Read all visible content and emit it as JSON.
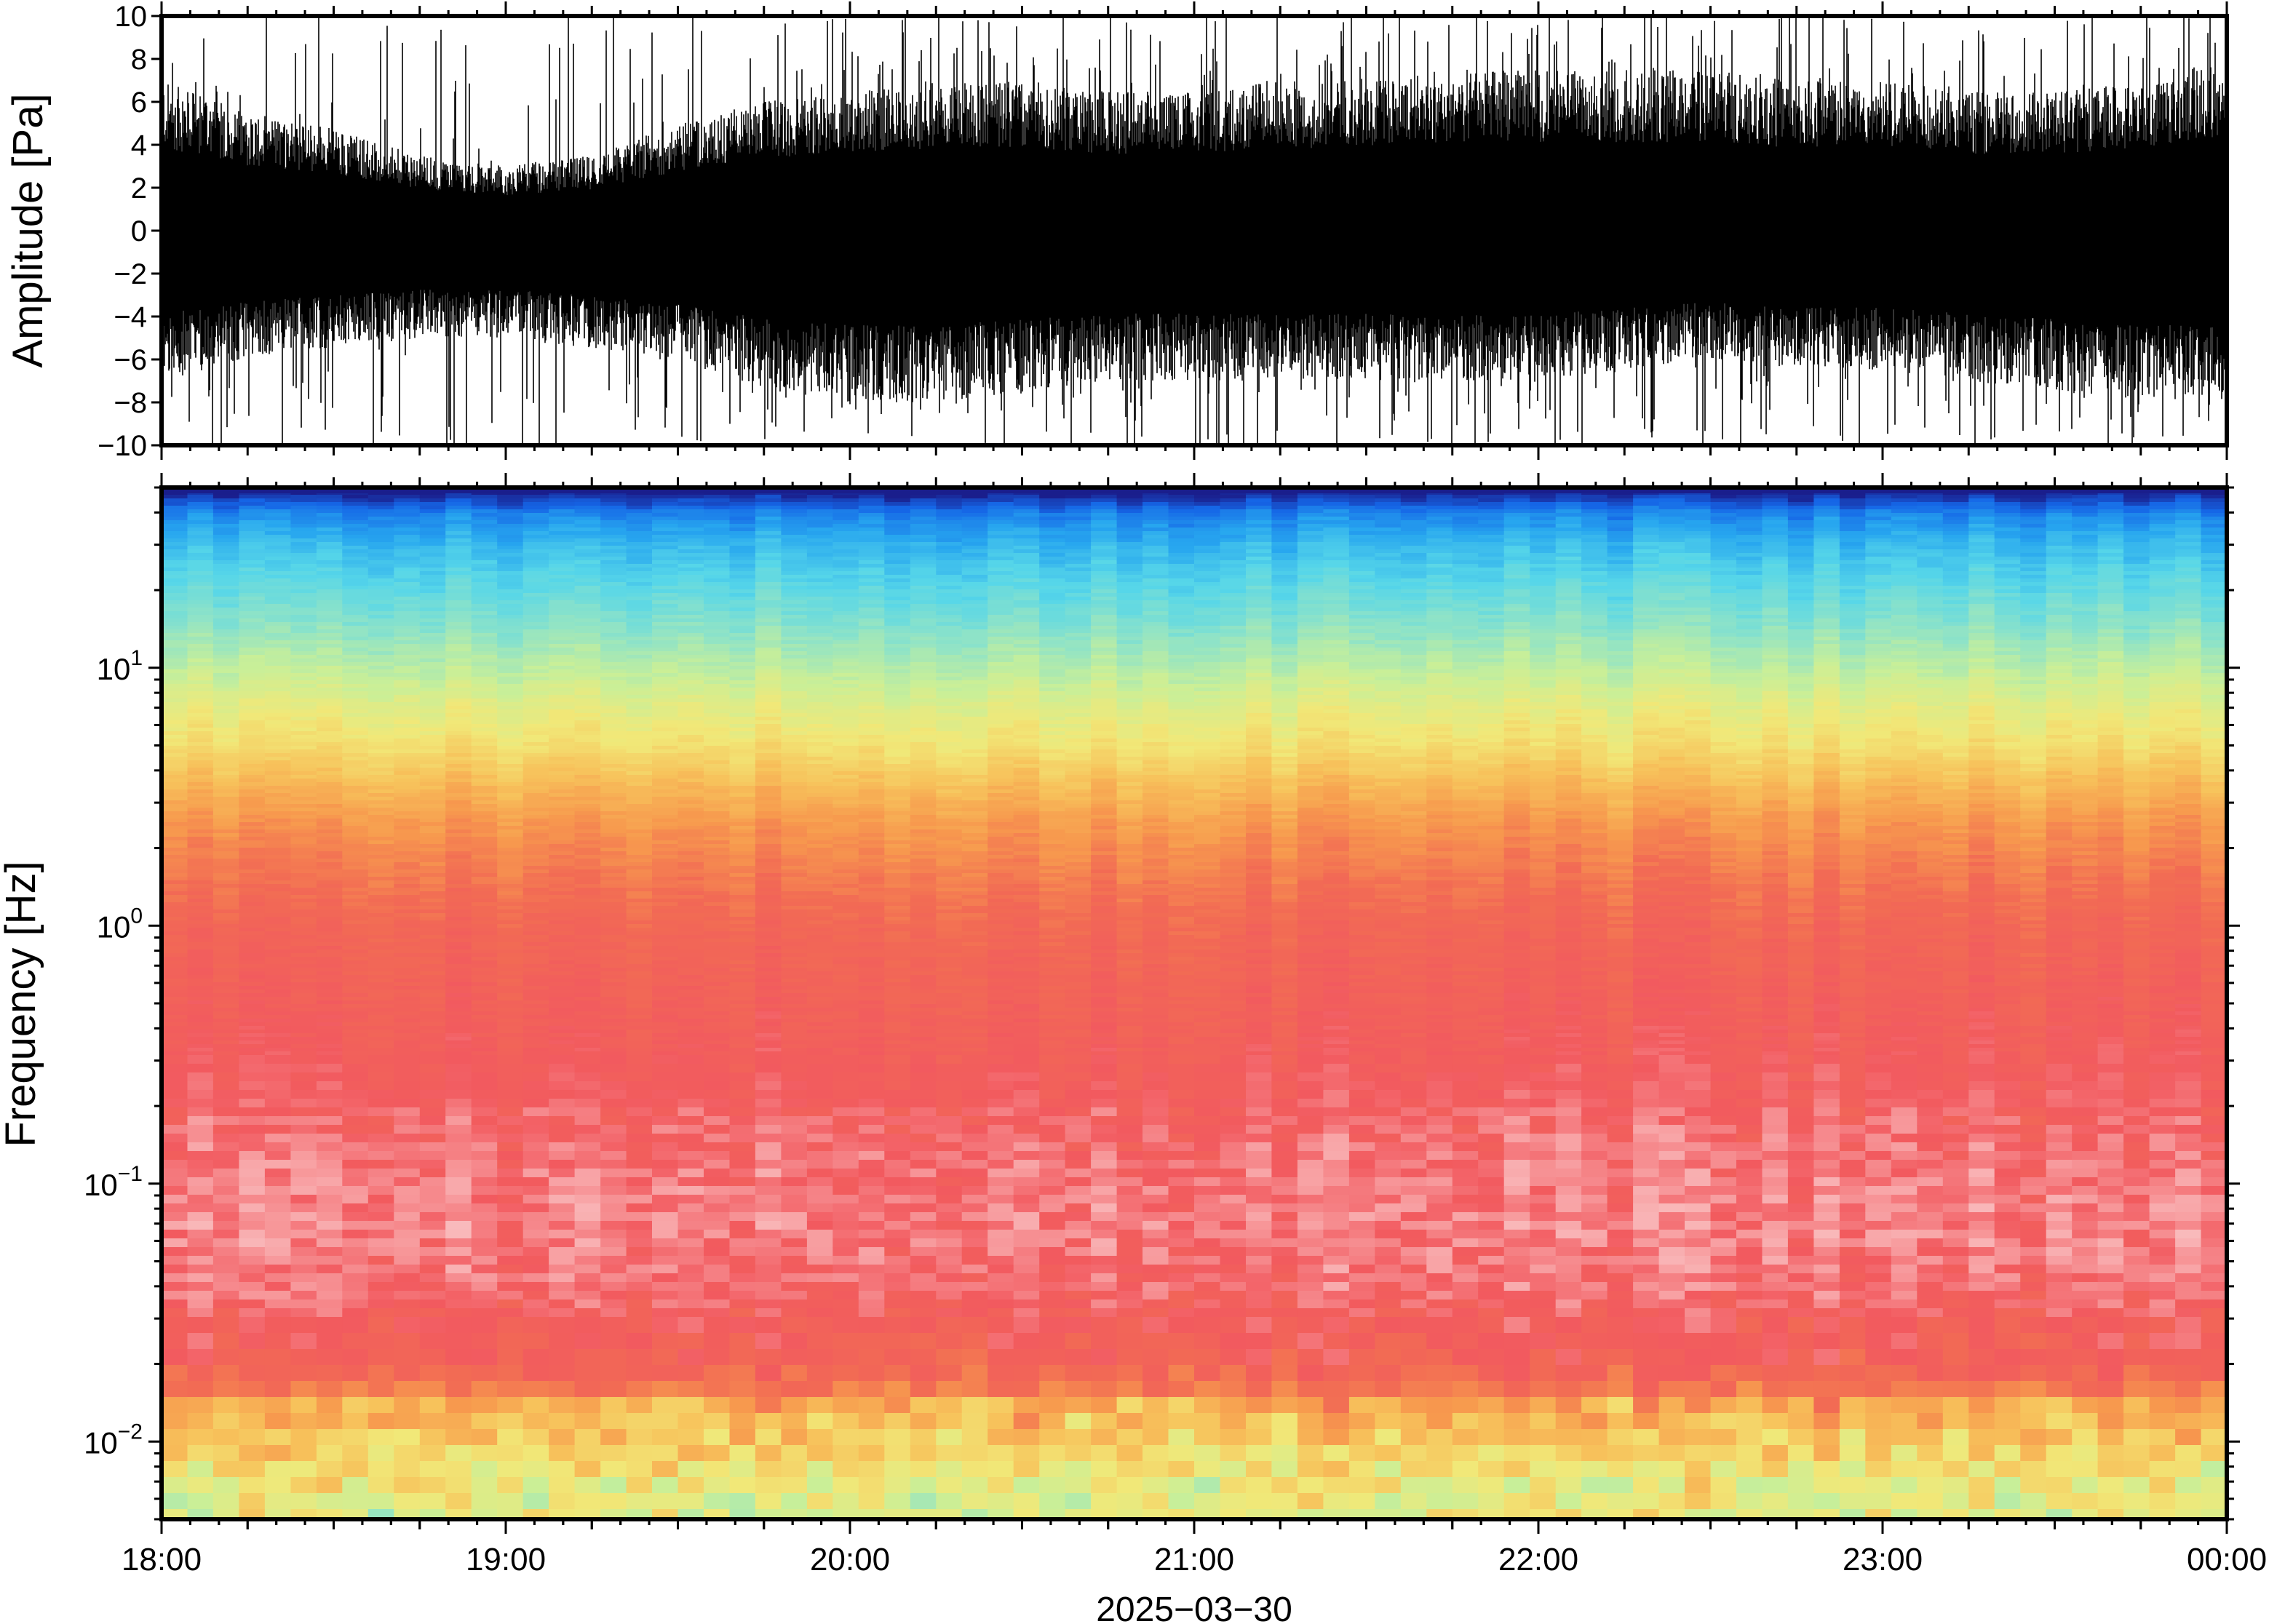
{
  "chart_data": [
    {
      "type": "line",
      "title": "",
      "xlabel": "",
      "ylabel": "Amplitude [Pa]",
      "ylim": [
        -10,
        10
      ],
      "yticks": [
        "10",
        "8",
        "6",
        "4",
        "2",
        "0",
        "−2",
        "−4",
        "−6",
        "−8",
        "−10"
      ],
      "ytick_values": [
        10,
        8,
        6,
        4,
        2,
        0,
        -2,
        -4,
        -6,
        -8,
        -10
      ],
      "grid": false,
      "series": [
        {
          "color": "#000000",
          "x_hours": [
            18.0,
            18.25,
            18.5,
            18.75,
            19.0,
            19.25,
            19.5,
            19.75,
            20.0,
            20.25,
            20.5,
            20.75,
            21.0,
            21.25,
            21.5,
            21.75,
            22.0,
            22.25,
            22.5,
            22.75,
            23.0,
            23.25,
            23.5,
            23.75,
            24.0
          ],
          "envelope_upper": [
            7.0,
            5.5,
            4.8,
            3.5,
            3.0,
            3.5,
            5.0,
            6.0,
            6.5,
            7.0,
            7.0,
            6.5,
            6.5,
            7.0,
            7.0,
            7.5,
            7.5,
            7.5,
            7.5,
            7.0,
            7.0,
            6.5,
            6.5,
            7.0,
            8.0
          ],
          "envelope_lower": [
            -7.0,
            -6.0,
            -5.5,
            -5.0,
            -5.0,
            -5.5,
            -6.0,
            -7.5,
            -8.0,
            -8.0,
            -7.5,
            -7.0,
            -7.0,
            -7.0,
            -7.0,
            -7.0,
            -7.0,
            -6.5,
            -6.0,
            -6.5,
            -6.5,
            -7.0,
            -7.5,
            -8.0,
            -8.0
          ]
        }
      ]
    },
    {
      "type": "heatmap",
      "title": "",
      "xlabel": "2025−03−30",
      "ylabel": "Frequency [Hz]",
      "yscale": "log",
      "ylim": [
        0.005,
        50
      ],
      "yticks": [
        {
          "value": 10,
          "base": "10",
          "exp": "1"
        },
        {
          "value": 1,
          "base": "10",
          "exp": "0"
        },
        {
          "value": 0.1,
          "base": "10",
          "exp": "−1"
        },
        {
          "value": 0.01,
          "base": "10",
          "exp": "−2"
        }
      ],
      "colormap": [
        "#1a1e8c",
        "#1565e6",
        "#27a6ef",
        "#56d6e9",
        "#8fe3c7",
        "#c9ef98",
        "#f1e878",
        "#f7c25b",
        "#f79a4e",
        "#f26b54",
        "#f25a5f",
        "#f8a6a8",
        "#fbe0e0"
      ],
      "frequency_levels_hz": [
        48,
        40,
        30,
        20,
        15,
        10,
        7,
        5,
        3.5,
        2.5,
        1.5,
        1.0,
        0.5,
        0.3,
        0.15,
        0.1,
        0.07,
        0.04,
        0.03,
        0.02,
        0.013,
        0.008,
        0.006
      ],
      "color_index_profile": [
        0.0,
        0.12,
        0.2,
        0.27,
        0.32,
        0.4,
        0.47,
        0.52,
        0.6,
        0.67,
        0.73,
        0.77,
        0.8,
        0.82,
        0.85,
        0.87,
        0.88,
        0.86,
        0.82,
        0.79,
        0.68,
        0.58,
        0.52
      ],
      "grid": false
    }
  ],
  "xaxis": {
    "ticks": [
      "18:00",
      "19:00",
      "20:00",
      "21:00",
      "22:00",
      "23:00",
      "00:00"
    ],
    "tick_hours": [
      18,
      19,
      20,
      21,
      22,
      23,
      24
    ],
    "date_label": "2025−03−30"
  }
}
